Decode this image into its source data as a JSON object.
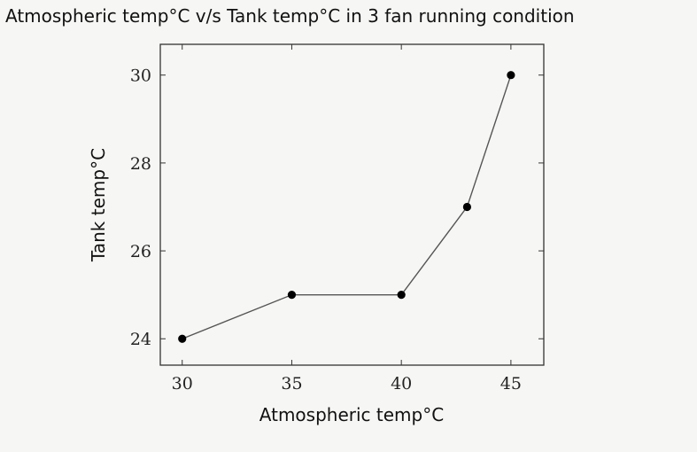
{
  "chart_data": {
    "type": "line",
    "title": "Atmospheric temp°C  v/s Tank temp°C  in 3 fan running condition",
    "xlabel": "Atmospheric temp°C",
    "ylabel": "Tank temp°C",
    "x": [
      30,
      35,
      40,
      43,
      45
    ],
    "series": [
      {
        "values": [
          24,
          25,
          25,
          27,
          30
        ]
      }
    ],
    "xticks": [
      30,
      35,
      40,
      45
    ],
    "yticks": [
      24,
      26,
      28,
      30
    ],
    "xlim": [
      29,
      46.5
    ],
    "ylim": [
      23.4,
      30.7
    ],
    "grid": false,
    "colors": {
      "line": "#555555",
      "marker": "#000000",
      "axes": "#333333"
    }
  }
}
